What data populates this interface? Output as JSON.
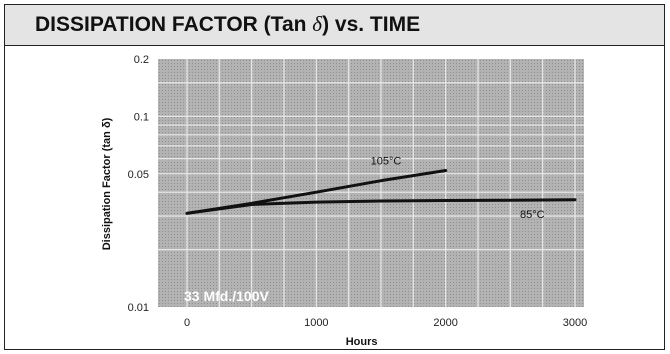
{
  "chart_data": {
    "type": "line",
    "title_prefix": "DISSIPATION FACTOR (Tan ",
    "title_symbol": "δ",
    "title_suffix": ") vs. TIME",
    "xlabel": "Hours",
    "ylabel": "Dissipation Factor (tan δ)",
    "xlim": [
      0,
      3000
    ],
    "ylim": [
      0.01,
      0.2
    ],
    "yscale": "log",
    "x_ticks": [
      0,
      1000,
      2000,
      3000
    ],
    "x_tick_labels": [
      "0",
      "1000",
      "2000",
      "3000"
    ],
    "y_ticks": [
      0.01,
      0.05,
      0.1,
      0.2
    ],
    "y_tick_labels": [
      "0.01",
      "0.05",
      "0.1",
      "0.2"
    ],
    "grid": true,
    "annotation": "33 Mfd./100V",
    "series": [
      {
        "name": "105°C",
        "x": [
          0,
          500,
          1000,
          1500,
          2000
        ],
        "y": [
          0.031,
          0.035,
          0.04,
          0.046,
          0.052
        ]
      },
      {
        "name": "85°C",
        "x": [
          0,
          500,
          1000,
          1500,
          2000,
          2500,
          3000
        ],
        "y": [
          0.031,
          0.0345,
          0.0355,
          0.036,
          0.0362,
          0.0363,
          0.0365
        ]
      }
    ]
  },
  "colors": {
    "plot_background": "#a8a8a8",
    "grid": "#e6e6e6",
    "line": "#111111",
    "header": "#e4e4e4"
  }
}
